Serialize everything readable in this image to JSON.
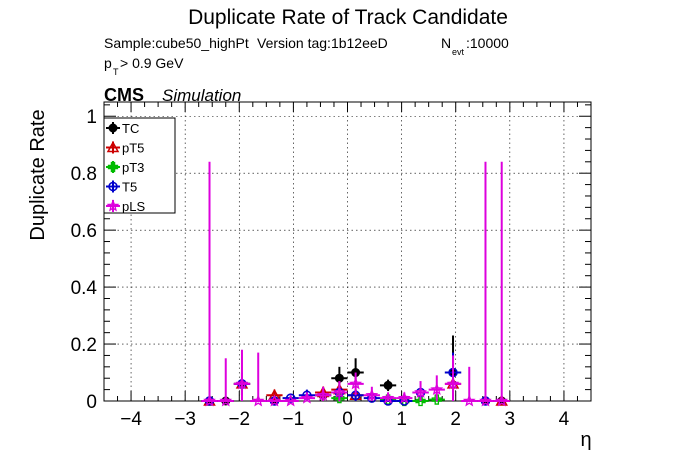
{
  "chart_data": {
    "type": "scatter",
    "title": "Duplicate Rate of Track Candidate",
    "info": {
      "sample": "Sample:cube50_highPt",
      "version": "Version tag:1b12eeD",
      "nevt_main": "N",
      "nevt_sub": "evt",
      "nevt_value": ":10000",
      "pt_main": "p",
      "pt_sub": "T",
      "pt_cut": " > 0.9 GeV"
    },
    "cms_label": "CMS",
    "sim_label": "Simulation",
    "xlabel": "η",
    "ylabel": "Duplicate Rate",
    "xlim": [
      -4.5,
      4.5
    ],
    "ylim": [
      0,
      1.05
    ],
    "xticks": [
      "−4",
      "−3",
      "−2",
      "−1",
      "0",
      "1",
      "2",
      "3",
      "4"
    ],
    "yticks": [
      "0",
      "0.2",
      "0.4",
      "0.6",
      "0.8",
      "1"
    ],
    "grid": true,
    "legend_position": "top-left",
    "bin_halfwidth": 0.15,
    "series": [
      {
        "name": "TC",
        "color": "#000000",
        "marker": "filled-circle",
        "points": [
          {
            "x": -2.55,
            "y": 0,
            "err": 0.0
          },
          {
            "x": -2.25,
            "y": 0,
            "err": 0.0
          },
          {
            "x": -1.95,
            "y": 0.06,
            "err": 0.04
          },
          {
            "x": -1.35,
            "y": 0,
            "err": 0.01
          },
          {
            "x": -0.45,
            "y": 0.02,
            "err": 0.02
          },
          {
            "x": -0.15,
            "y": 0.08,
            "err": 0.04
          },
          {
            "x": 0.15,
            "y": 0.1,
            "err": 0.05
          },
          {
            "x": 0.75,
            "y": 0.055,
            "err": 0.02
          },
          {
            "x": 1.95,
            "y": 0.1,
            "err": 0.13
          },
          {
            "x": 2.55,
            "y": 0,
            "err": 0.0
          },
          {
            "x": 2.85,
            "y": 0,
            "err": 0.0
          }
        ]
      },
      {
        "name": "pT5",
        "color": "#cc0000",
        "marker": "open-triangle",
        "points": [
          {
            "x": -2.55,
            "y": 0,
            "err": 0.0
          },
          {
            "x": -1.95,
            "y": 0.06,
            "err": 0.04
          },
          {
            "x": -1.35,
            "y": 0.02,
            "err": 0.02
          },
          {
            "x": -0.45,
            "y": 0.03,
            "err": 0.02
          },
          {
            "x": -0.15,
            "y": 0.04,
            "err": 0.03
          },
          {
            "x": 0.15,
            "y": 0.02,
            "err": 0.02
          },
          {
            "x": 1.95,
            "y": 0.06,
            "err": 0.05
          },
          {
            "x": 2.85,
            "y": 0,
            "err": 0.0
          }
        ]
      },
      {
        "name": "pT3",
        "color": "#00bb00",
        "marker": "open-cross",
        "points": [
          {
            "x": -0.15,
            "y": 0.01,
            "err": 0.01
          },
          {
            "x": 0.75,
            "y": 0.005,
            "err": 0.005
          },
          {
            "x": 1.05,
            "y": 0,
            "err": 0.0
          },
          {
            "x": 1.35,
            "y": 0,
            "err": 0.0
          },
          {
            "x": 1.65,
            "y": 0.005,
            "err": 0.005
          }
        ]
      },
      {
        "name": "T5",
        "color": "#0000cc",
        "marker": "open-circle",
        "points": [
          {
            "x": -2.55,
            "y": 0,
            "err": 0.0
          },
          {
            "x": -1.95,
            "y": 0.06,
            "err": 0.04
          },
          {
            "x": -1.35,
            "y": 0,
            "err": 0.0
          },
          {
            "x": -1.05,
            "y": 0.01,
            "err": 0.01
          },
          {
            "x": -0.75,
            "y": 0.02,
            "err": 0.02
          },
          {
            "x": -0.15,
            "y": 0.03,
            "err": 0.02
          },
          {
            "x": 0.15,
            "y": 0.02,
            "err": 0.02
          },
          {
            "x": 0.45,
            "y": 0.01,
            "err": 0.01
          },
          {
            "x": 0.75,
            "y": 0,
            "err": 0.0
          },
          {
            "x": 1.05,
            "y": 0,
            "err": 0.0
          },
          {
            "x": 1.35,
            "y": 0.03,
            "err": 0.02
          },
          {
            "x": 1.95,
            "y": 0.1,
            "err": 0.07
          },
          {
            "x": 2.55,
            "y": 0,
            "err": 0.0
          }
        ]
      },
      {
        "name": "pLS",
        "color": "#dd00dd",
        "marker": "open-star",
        "points": [
          {
            "x": -2.55,
            "y": 0,
            "err": 0.84
          },
          {
            "x": -2.25,
            "y": 0,
            "err": 0.15
          },
          {
            "x": -1.95,
            "y": 0.06,
            "err": 0.12
          },
          {
            "x": -1.65,
            "y": 0,
            "err": 0.17
          },
          {
            "x": -1.35,
            "y": 0,
            "err": 0.0
          },
          {
            "x": -1.05,
            "y": 0,
            "err": 0.0
          },
          {
            "x": -0.75,
            "y": 0.01,
            "err": 0.02
          },
          {
            "x": -0.45,
            "y": 0.02,
            "err": 0.03
          },
          {
            "x": -0.15,
            "y": 0.03,
            "err": 0.04
          },
          {
            "x": 0.15,
            "y": 0.06,
            "err": 0.04
          },
          {
            "x": 0.45,
            "y": 0.02,
            "err": 0.03
          },
          {
            "x": 0.75,
            "y": 0.01,
            "err": 0.02
          },
          {
            "x": 1.05,
            "y": 0.01,
            "err": 0.02
          },
          {
            "x": 1.35,
            "y": 0.03,
            "err": 0.04
          },
          {
            "x": 1.65,
            "y": 0.04,
            "err": 0.05
          },
          {
            "x": 1.95,
            "y": 0.06,
            "err": 0.1
          },
          {
            "x": 2.25,
            "y": 0,
            "err": 0.12
          },
          {
            "x": 2.55,
            "y": 0,
            "err": 0.84
          },
          {
            "x": 2.85,
            "y": 0,
            "err": 0.84
          }
        ]
      }
    ]
  }
}
